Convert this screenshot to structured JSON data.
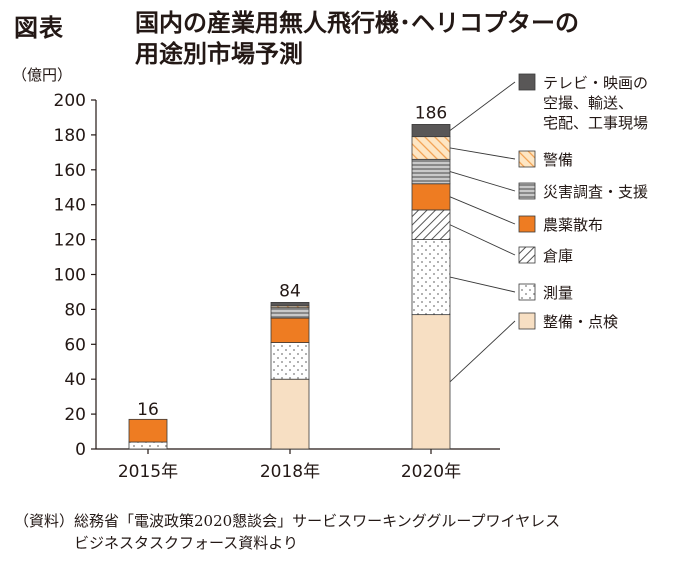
{
  "figure_label": "図表",
  "title_line1": "国内の産業用無人飛行機･ヘリコプターの",
  "title_line2": "用途別市場予測",
  "unit_label": "（億円）",
  "source_line1": "（資料）総務省「電波政策2020懇談会」サービスワーキンググループワイヤレス",
  "source_line2": "ビジネスタスクフォース資料より",
  "chart_data": {
    "type": "bar",
    "stacked": true,
    "categories": [
      "2015年",
      "2018年",
      "2020年"
    ],
    "totals": [
      16,
      84,
      186
    ],
    "ylim": [
      0,
      200
    ],
    "yticks": [
      0,
      20,
      40,
      60,
      80,
      100,
      120,
      140,
      160,
      180,
      200
    ],
    "ylabel": "（億円）",
    "xlabel": "",
    "grid": false,
    "legend_position": "right",
    "series": [
      {
        "name": "整備・点検",
        "pattern": "solid",
        "color": "#f7dfc3",
        "values": [
          0,
          40,
          77
        ]
      },
      {
        "name": "測量",
        "pattern": "dots",
        "color": "#ffffff",
        "values": [
          4,
          21,
          43
        ]
      },
      {
        "name": "倉庫",
        "pattern": "diag-hatch",
        "color": "#c8c8c8",
        "values": [
          0,
          0,
          17
        ]
      },
      {
        "name": "農薬散布",
        "pattern": "solid",
        "color": "#ee7c22",
        "values": [
          13,
          14,
          15
        ]
      },
      {
        "name": "災害調査・支援",
        "pattern": "h-stripes",
        "color": "#888888",
        "values": [
          0,
          6,
          14
        ]
      },
      {
        "name": "警備",
        "pattern": "diag-orange",
        "color": "#f7c37d",
        "values": [
          0,
          1,
          13
        ]
      },
      {
        "name": "テレビ・映画の空撮、輸送、宅配、工事現場",
        "name_lines": [
          "テレビ・映画の",
          "空撮、輸送、",
          "宅配、工事現場"
        ],
        "pattern": "solid",
        "color": "#595757",
        "values": [
          0,
          2,
          7
        ]
      }
    ]
  }
}
